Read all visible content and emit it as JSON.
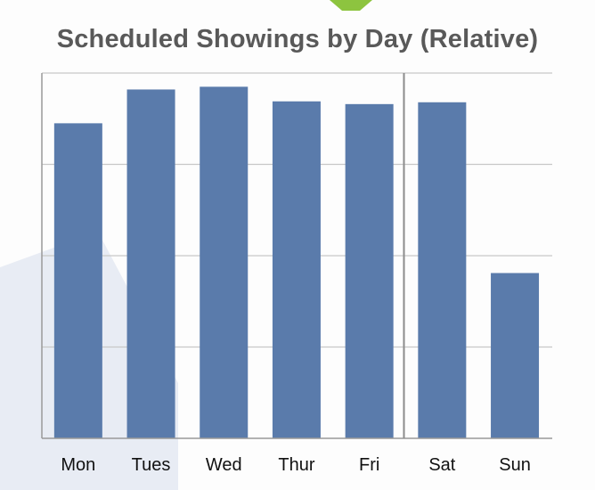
{
  "page": {
    "colors": {
      "bar": "#5a7bab",
      "grid": "#c8c8c8",
      "axis": "#999999",
      "divider": "#8c8c8c",
      "title": "#595959",
      "decoration_green": "#8dc43f",
      "decoration_blue": "#e8ecf4"
    }
  },
  "chart_data": {
    "type": "bar",
    "title": "Scheduled Showings by Day (Relative)",
    "xlabel": "",
    "ylabel": "",
    "categories": [
      "Mon",
      "Tues",
      "Wed",
      "Thur",
      "Fri",
      "Sat",
      "Sun"
    ],
    "values": [
      3.45,
      3.82,
      3.85,
      3.69,
      3.66,
      3.68,
      1.81
    ],
    "ylim": [
      0,
      4
    ],
    "ytick_labels_shown": false,
    "grid": "horizontal",
    "divider_between": [
      "Fri",
      "Sat"
    ],
    "legend": "none"
  }
}
